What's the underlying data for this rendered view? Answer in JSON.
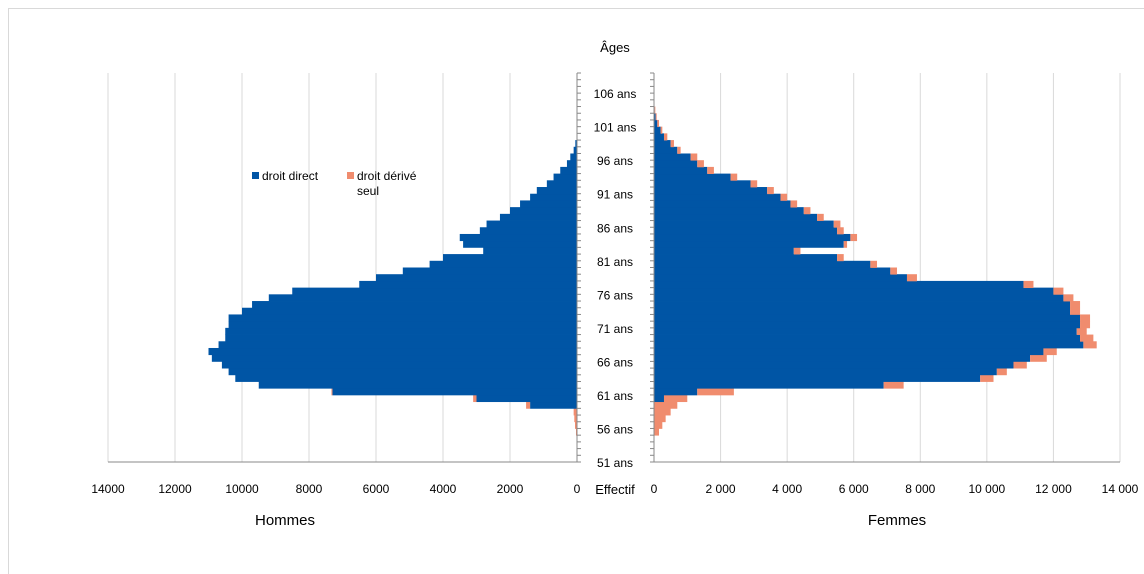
{
  "chart_data": {
    "type": "bar",
    "title": "Âges",
    "xlabel": "Effectif",
    "left_axis_label": "Hommes",
    "right_axis_label": "Femmes",
    "legend_placement": "top-left",
    "colors": {
      "droit_direct": "#0055a5",
      "droit_derive": "#f08c6e",
      "grid": "#d9d9d9"
    },
    "ylim": [
      51,
      109
    ],
    "y_ticks": [
      "51 ans",
      "56 ans",
      "61 ans",
      "66 ans",
      "71 ans",
      "76 ans",
      "81 ans",
      "86 ans",
      "91 ans",
      "96 ans",
      "101 ans",
      "106 ans"
    ],
    "left_xlim": [
      0,
      14000
    ],
    "left_ticks": [
      "14000",
      "12000",
      "10000",
      "8000",
      "6000",
      "4000",
      "2000",
      "0"
    ],
    "right_xlim": [
      0,
      14000
    ],
    "right_ticks": [
      "0",
      "2 000",
      "4 000",
      "6 000",
      "8 000",
      "10 000",
      "12 000",
      "14 000"
    ],
    "series": [
      {
        "name": "droit direct",
        "color": "#0055a5"
      },
      {
        "name": "droit dérivé seul",
        "color": "#f08c6e"
      }
    ],
    "ages": [
      55,
      56,
      57,
      58,
      59,
      60,
      61,
      62,
      63,
      64,
      65,
      66,
      67,
      68,
      69,
      70,
      71,
      72,
      73,
      74,
      75,
      76,
      77,
      78,
      79,
      80,
      81,
      82,
      83,
      84,
      85,
      86,
      87,
      88,
      89,
      90,
      91,
      92,
      93,
      94,
      95,
      96,
      97,
      98,
      99,
      100,
      101,
      102,
      103
    ],
    "hommes": {
      "droit_direct": [
        0,
        0,
        0,
        0,
        1400,
        3000,
        7300,
        9500,
        10200,
        10400,
        10600,
        10900,
        11000,
        10700,
        10500,
        10500,
        10400,
        10400,
        10000,
        9700,
        9200,
        8500,
        6500,
        6000,
        5200,
        4400,
        4000,
        2800,
        3400,
        3500,
        2900,
        2700,
        2300,
        2000,
        1700,
        1400,
        1200,
        900,
        700,
        500,
        300,
        200,
        100,
        50,
        0,
        0,
        0,
        0,
        0
      ],
      "droit_derive": [
        30,
        60,
        80,
        100,
        120,
        100,
        30,
        0,
        0,
        0,
        0,
        0,
        0,
        0,
        0,
        0,
        0,
        0,
        0,
        0,
        0,
        0,
        0,
        0,
        0,
        0,
        0,
        0,
        0,
        0,
        0,
        0,
        0,
        0,
        0,
        0,
        0,
        0,
        0,
        0,
        0,
        0,
        0,
        0,
        0,
        0,
        0,
        0,
        0
      ]
    },
    "femmes": {
      "droit_direct": [
        0,
        0,
        0,
        0,
        0,
        300,
        1300,
        6900,
        9800,
        10300,
        10800,
        11300,
        11700,
        12900,
        12800,
        12700,
        12800,
        12800,
        12500,
        12500,
        12300,
        12000,
        11100,
        7600,
        7100,
        6500,
        5500,
        4200,
        5700,
        5900,
        5500,
        5400,
        4900,
        4500,
        4100,
        3800,
        3400,
        2900,
        2300,
        1600,
        1300,
        1100,
        700,
        500,
        300,
        200,
        100,
        50,
        20
      ],
      "droit_derive": [
        150,
        250,
        350,
        500,
        700,
        700,
        1100,
        600,
        400,
        300,
        400,
        500,
        400,
        400,
        400,
        300,
        300,
        300,
        300,
        300,
        300,
        300,
        300,
        300,
        200,
        200,
        200,
        200,
        100,
        200,
        200,
        200,
        200,
        200,
        200,
        200,
        200,
        200,
        200,
        200,
        200,
        200,
        100,
        100,
        100,
        50,
        50,
        30,
        20
      ]
    }
  },
  "legend": {
    "direct_label": "droit direct",
    "derive_label_line1": "droit dérivé",
    "derive_label_line2": "seul"
  }
}
